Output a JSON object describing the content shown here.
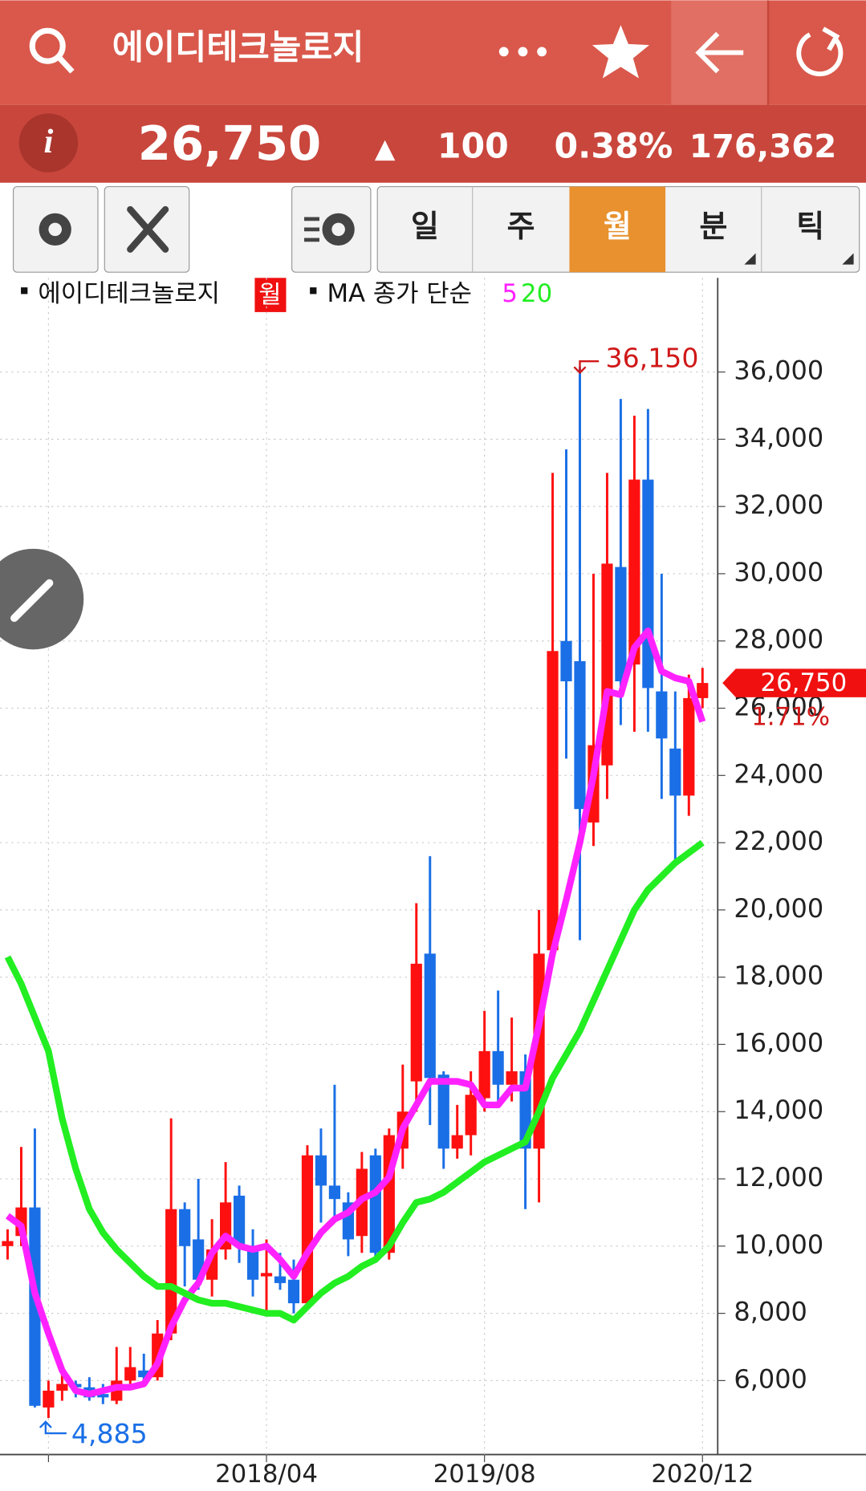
{
  "header": {
    "title": "에이디테크놀로지",
    "price": "26,750",
    "change_symbol": "▲",
    "change": "100",
    "change_pct": "0.38%",
    "volume": "176,362"
  },
  "toolbar": {
    "tabs": [
      "일",
      "주",
      "월",
      "분",
      "틱"
    ]
  },
  "legend": {
    "stock": "에이디테크놀로지",
    "period": "월",
    "indicator": "MA 종가 단순"
  },
  "chart_data": {
    "type": "candlestick",
    "categories": [
      null,
      null,
      null,
      null,
      null,
      null,
      null,
      null,
      null,
      null,
      null,
      null,
      null,
      null,
      null,
      null,
      null,
      null,
      null,
      "2018/04",
      null,
      null,
      null,
      null,
      null,
      null,
      null,
      null,
      null,
      null,
      null,
      null,
      null,
      null,
      null,
      "2019/08",
      null,
      null,
      null,
      null,
      null,
      null,
      null,
      null,
      null,
      null,
      null,
      null,
      null,
      null,
      null,
      "2020/12"
    ],
    "open": [
      10000,
      10300,
      11150,
      5200,
      5700,
      5900,
      5800,
      5600,
      5400,
      6000,
      6300,
      6100,
      7400,
      11100,
      10200,
      9000,
      9900,
      11500,
      10000,
      9100,
      9100,
      9000,
      8300,
      12700,
      11800,
      11300,
      10300,
      12700,
      9800,
      12900,
      14900,
      18700,
      15100,
      12900,
      13300,
      14400,
      15800,
      14800,
      15200,
      12900,
      18800,
      28000,
      27400,
      22600,
      24300,
      30200,
      27300,
      32800,
      26500,
      24800,
      23400,
      26300
    ],
    "high": [
      10500,
      12950,
      13500,
      6000,
      6300,
      6000,
      6100,
      5900,
      7000,
      7000,
      6800,
      7800,
      13800,
      11300,
      12000,
      10800,
      12500,
      11800,
      10500,
      10200,
      9800,
      9600,
      13000,
      13500,
      14800,
      11600,
      12800,
      12900,
      13500,
      15400,
      20200,
      21600,
      15200,
      14200,
      15200,
      17000,
      17600,
      16800,
      15700,
      20000,
      33000,
      33700,
      36150,
      30000,
      33000,
      35200,
      34700,
      34900,
      30000,
      26500,
      27000,
      27200
    ],
    "low": [
      9600,
      10000,
      5200,
      4885,
      5400,
      5500,
      5400,
      5300,
      5300,
      5900,
      5900,
      6000,
      7200,
      8800,
      8700,
      8500,
      9600,
      9500,
      8500,
      8000,
      8700,
      8000,
      8100,
      10700,
      10800,
      9700,
      9800,
      9500,
      9600,
      12300,
      14000,
      13600,
      12300,
      12600,
      12700,
      14000,
      14200,
      14300,
      11100,
      11300,
      18500,
      24500,
      19100,
      21900,
      23300,
      25500,
      25300,
      25300,
      23300,
      21300,
      22800,
      26000
    ],
    "close": [
      10150,
      11150,
      5250,
      5700,
      5900,
      5800,
      5500,
      5500,
      6000,
      6400,
      6100,
      7400,
      11100,
      10000,
      9000,
      9900,
      11300,
      10000,
      9000,
      9200,
      8900,
      8300,
      12700,
      11800,
      11400,
      10200,
      12300,
      9800,
      13300,
      14000,
      18400,
      15000,
      12900,
      13300,
      14500,
      15800,
      14800,
      15200,
      12900,
      18700,
      27700,
      26800,
      23000,
      24900,
      30300,
      26800,
      32800,
      26600,
      25100,
      23400,
      26300,
      26750
    ],
    "up_color": "#ff1010",
    "down_color": "#1a6fe6",
    "series": [
      {
        "name": "5",
        "color": "#ff22ff",
        "values": [
          10900,
          10600,
          8600,
          7400,
          6300,
          5700,
          5600,
          5700,
          5800,
          5800,
          5900,
          6500,
          7600,
          8400,
          8900,
          9800,
          10300,
          10000,
          9900,
          10000,
          9600,
          9100,
          9800,
          10400,
          10800,
          11000,
          11400,
          11600,
          12050,
          13500,
          14200,
          14900,
          14900,
          14900,
          14800,
          14200,
          14200,
          14700,
          14700,
          16600,
          18700,
          20300,
          22000,
          24000,
          26500,
          26400,
          27800,
          28300,
          27100,
          26900,
          26800,
          25600
        ]
      },
      {
        "name": "20",
        "color": "#22ee22",
        "values": [
          18600,
          17800,
          16800,
          15800,
          13800,
          12300,
          11100,
          10400,
          9900,
          9500,
          9100,
          8800,
          8800,
          8600,
          8400,
          8300,
          8300,
          8200,
          8100,
          8000,
          8000,
          7800,
          8200,
          8600,
          8900,
          9100,
          9400,
          9600,
          10000,
          10700,
          11300,
          11400,
          11600,
          11900,
          12200,
          12500,
          12700,
          12900,
          13100,
          14000,
          15000,
          15700,
          16400,
          17300,
          18200,
          19100,
          20000,
          20600,
          21000,
          21400,
          21700,
          22000
        ]
      }
    ],
    "ylim": [
      3800,
      38800
    ],
    "yticks": [
      {
        "value": 6000,
        "label": "6,000"
      },
      {
        "value": 8000,
        "label": "8,000"
      },
      {
        "value": 10000,
        "label": "10,000"
      },
      {
        "value": 12000,
        "label": "12,000"
      },
      {
        "value": 14000,
        "label": "14,000"
      },
      {
        "value": 16000,
        "label": "16,000"
      },
      {
        "value": 18000,
        "label": "18,000"
      },
      {
        "value": 20000,
        "label": "20,000"
      },
      {
        "value": 22000,
        "label": "22,000"
      },
      {
        "value": 24000,
        "label": "24,000"
      },
      {
        "value": 26000,
        "label": "26,000"
      },
      {
        "value": 28000,
        "label": "28,000"
      },
      {
        "value": 30000,
        "label": "30,000"
      },
      {
        "value": 32000,
        "label": "32,000"
      },
      {
        "value": 34000,
        "label": "34,000"
      },
      {
        "value": 36000,
        "label": "36,000"
      }
    ],
    "grid": true,
    "max_label": {
      "value": 36150,
      "label": "36,150"
    },
    "min_label": {
      "value": 4885,
      "label": "4,885"
    },
    "last_label": {
      "value": 26750,
      "label": "26,750"
    },
    "last_change": "1.71%"
  }
}
